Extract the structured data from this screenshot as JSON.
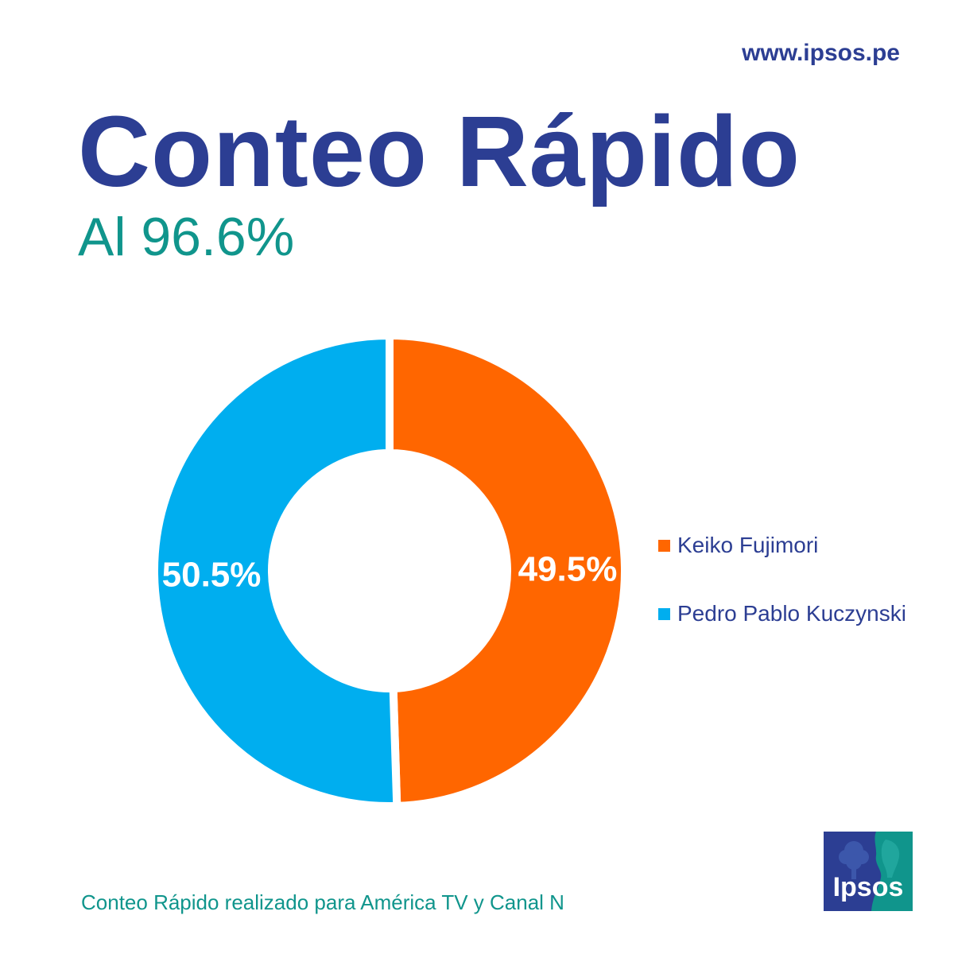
{
  "header": {
    "url": "www.ipsos.pe",
    "title": "Conteo Rápido",
    "subtitle": "Al 96.6%"
  },
  "chart_data": {
    "type": "pie",
    "donut": true,
    "slices": [
      {
        "name": "Keiko Fujimori",
        "value": 49.5,
        "label": "49.5%",
        "color": "#ff6600"
      },
      {
        "name": "Pedro Pablo Kuczynski",
        "value": 50.5,
        "label": "50.5%",
        "color": "#00aeef"
      }
    ],
    "legend_position": "right"
  },
  "legend": {
    "items": [
      {
        "label": "Keiko Fujimori",
        "color": "#ff6600"
      },
      {
        "label": "Pedro Pablo Kuczynski",
        "color": "#00aeef"
      }
    ]
  },
  "footer": {
    "note": "Conteo Rápido realizado para América TV y Canal N"
  },
  "logo": {
    "text": "Ipsos",
    "colors": [
      "#2c3e93",
      "#10958c"
    ]
  }
}
